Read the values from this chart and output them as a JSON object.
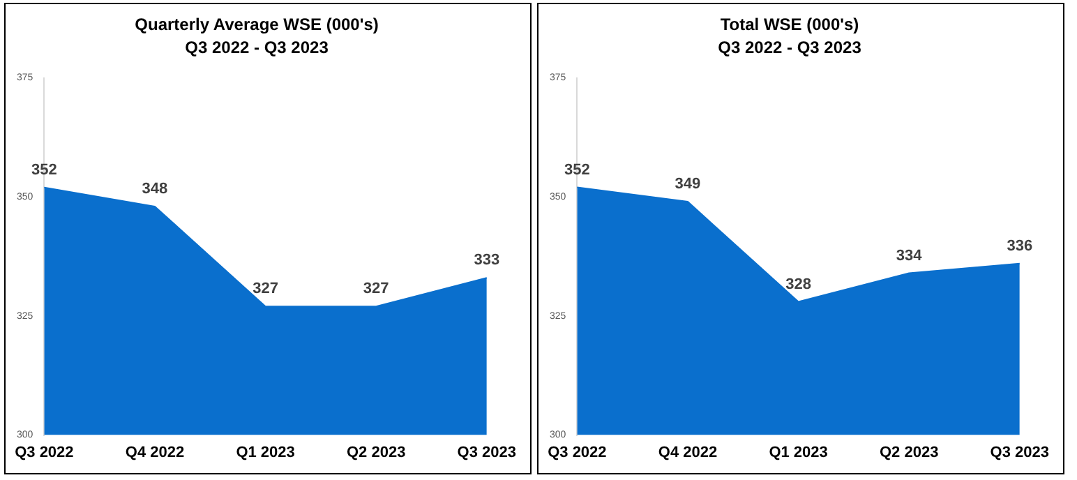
{
  "chart_data": [
    {
      "type": "area",
      "title": "Quarterly Average WSE (000's)",
      "subtitle": "Q3 2022 - Q3 2023",
      "categories": [
        "Q3 2022",
        "Q4 2022",
        "Q1 2023",
        "Q2 2023",
        "Q3 2023"
      ],
      "values": [
        352,
        348,
        327,
        327,
        333
      ],
      "color": "#0a6fcd",
      "ylim": [
        300,
        375
      ],
      "yticks": [
        300,
        325,
        350,
        375
      ],
      "grid": false,
      "data_labels": true
    },
    {
      "type": "area",
      "title": "Total WSE (000's)",
      "subtitle": "Q3 2022 - Q3 2023",
      "categories": [
        "Q3 2022",
        "Q4 2022",
        "Q1 2023",
        "Q2 2023",
        "Q3 2023"
      ],
      "values": [
        352,
        349,
        328,
        334,
        336
      ],
      "color": "#0a6fcd",
      "ylim": [
        300,
        375
      ],
      "yticks": [
        300,
        325,
        350,
        375
      ],
      "grid": false,
      "data_labels": true
    }
  ]
}
